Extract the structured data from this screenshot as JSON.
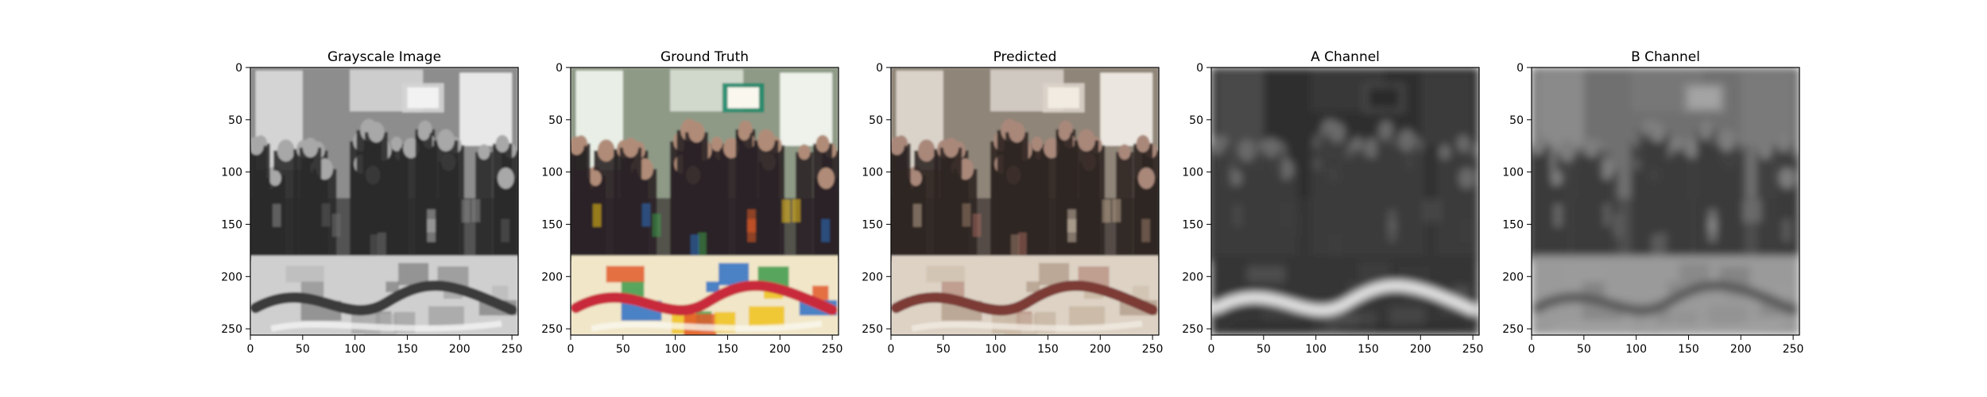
{
  "figure": {
    "panels": [
      {
        "id": "grayscale",
        "title": "Grayscale Image",
        "mode": "gray",
        "icon": "grayscale-photo"
      },
      {
        "id": "ground-truth",
        "title": "Ground Truth",
        "mode": "color",
        "icon": "color-photo"
      },
      {
        "id": "predicted",
        "title": "Predicted",
        "mode": "muted",
        "icon": "predicted-photo"
      },
      {
        "id": "a-channel",
        "title": "A Channel",
        "mode": "achannel",
        "icon": "a-channel-map"
      },
      {
        "id": "b-channel",
        "title": "B Channel",
        "mode": "bchannel",
        "icon": "b-channel-map"
      }
    ],
    "axes": {
      "x_ticks": [
        "0",
        "50",
        "100",
        "150",
        "200",
        "250"
      ],
      "y_ticks": [
        "0",
        "50",
        "100",
        "150",
        "200",
        "250"
      ],
      "x_range": [
        0,
        256
      ],
      "y_range": [
        256,
        0
      ]
    }
  }
}
